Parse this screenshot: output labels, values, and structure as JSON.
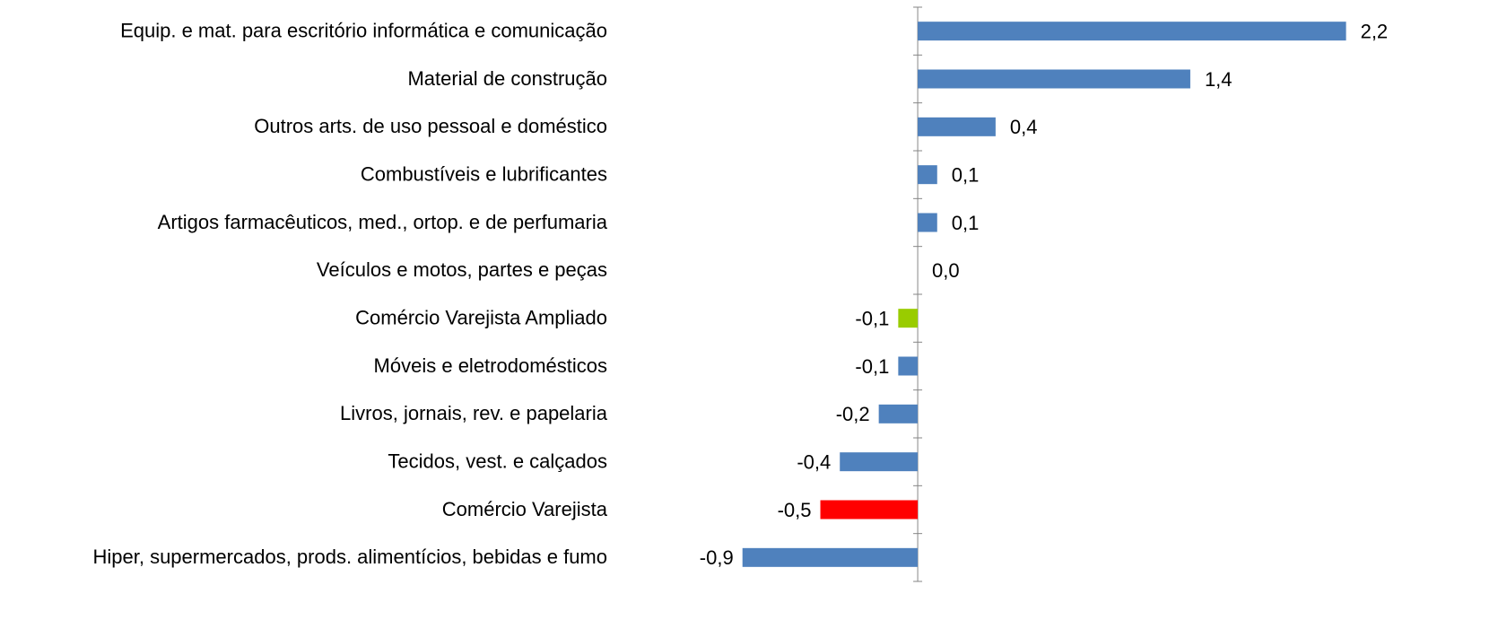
{
  "chart_data": {
    "type": "bar",
    "orientation": "horizontal",
    "categories": [
      "Equip. e mat. para escritório informática e comunicação",
      "Material de construção",
      "Outros arts. de uso pessoal e doméstico",
      "Combustíveis e lubrificantes",
      "Artigos farmacêuticos, med., ortop. e de perfumaria",
      "Veículos e motos, partes e peças",
      "Comércio Varejista Ampliado",
      "Móveis e eletrodomésticos",
      "Livros, jornais, rev. e papelaria",
      "Tecidos, vest. e calçados",
      "Comércio Varejista",
      "Hiper, supermercados, prods.  alimentícios, bebidas e fumo"
    ],
    "values": [
      2.2,
      1.4,
      0.4,
      0.1,
      0.1,
      0.0,
      -0.1,
      -0.1,
      -0.2,
      -0.4,
      -0.5,
      -0.9
    ],
    "value_labels": [
      "2,2",
      "1,4",
      "0,4",
      "0,1",
      "0,1",
      "0,0",
      "-0,1",
      "-0,1",
      "-0,2",
      "-0,4",
      "-0,5",
      "-0,9"
    ],
    "colors": [
      "#4f81bd",
      "#4f81bd",
      "#4f81bd",
      "#4f81bd",
      "#4f81bd",
      "#4f81bd",
      "#99cc00",
      "#4f81bd",
      "#4f81bd",
      "#4f81bd",
      "#ff0000",
      "#4f81bd"
    ],
    "xlim": [
      -1,
      2.4
    ]
  }
}
